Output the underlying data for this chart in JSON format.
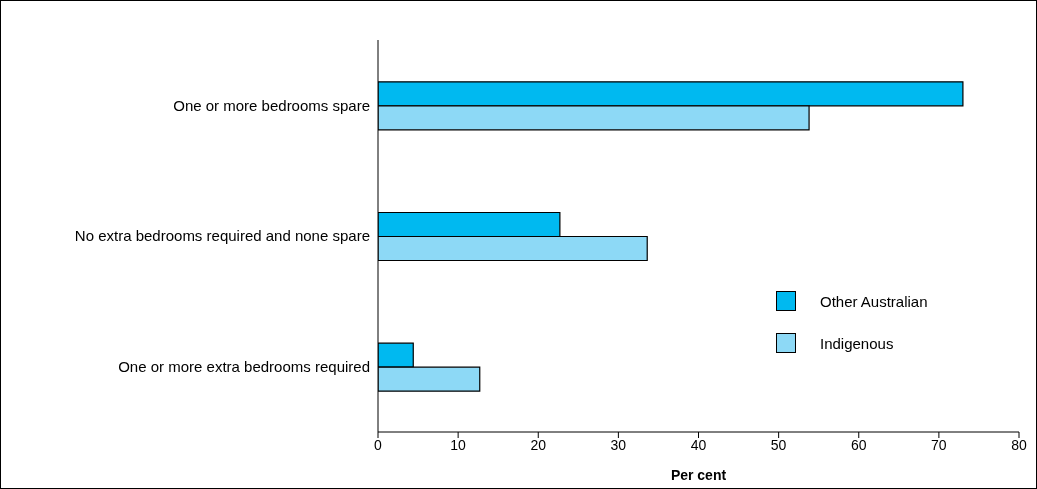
{
  "chart_data": {
    "type": "bar",
    "orientation": "horizontal",
    "xlabel": "Per cent",
    "categories": [
      "One or more bedrooms spare",
      "No extra bedrooms required and none spare",
      "One or more extra bedrooms required"
    ],
    "series": [
      {
        "name": "Other Australian",
        "color": "#00b9f0",
        "values": [
          73.0,
          22.7,
          4.4
        ]
      },
      {
        "name": "Indigenous",
        "color": "#8dd9f6",
        "values": [
          53.8,
          33.6,
          12.7
        ]
      }
    ],
    "xlim": [
      0,
      80
    ],
    "xticks": [
      0,
      10,
      20,
      30,
      40,
      50,
      60,
      70,
      80
    ],
    "grid": false,
    "legend": "bottom right"
  }
}
